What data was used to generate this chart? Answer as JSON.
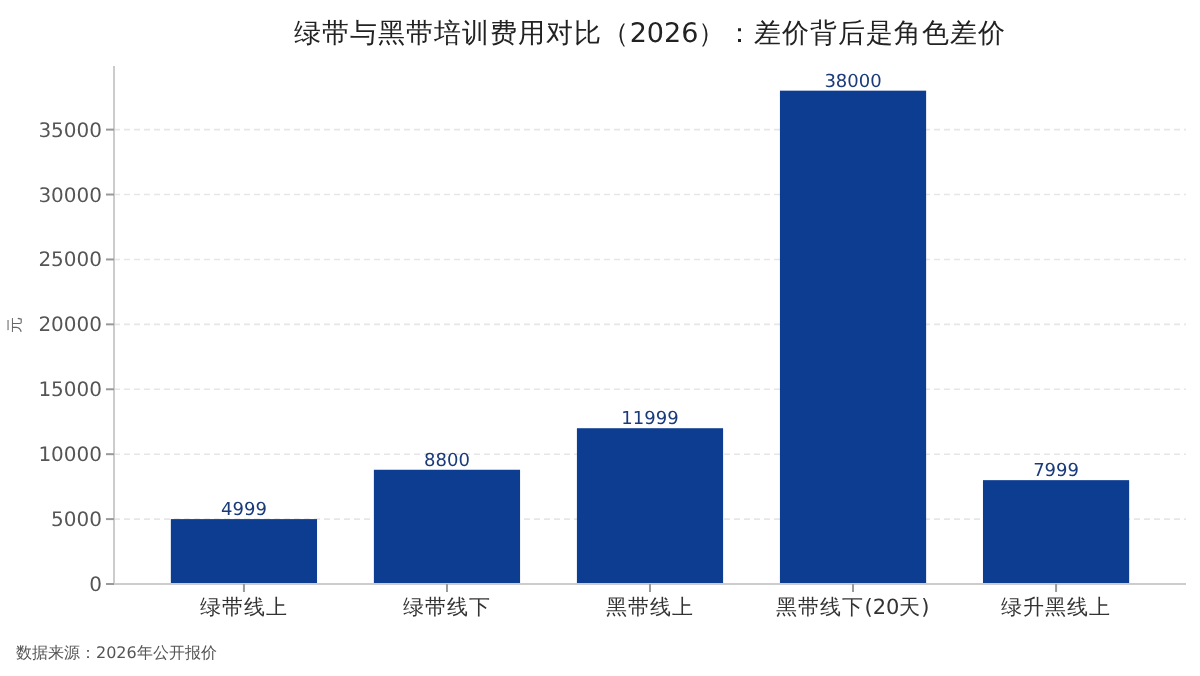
{
  "chart_data": {
    "type": "bar",
    "title": "绿带与黑带培训费用对比（2026）：差价背后是角色差价",
    "ylabel": "元",
    "categories": [
      "绿带线上",
      "绿带线下",
      "黑带线上",
      "黑带线下(20天)",
      "绿升黑线上"
    ],
    "values": [
      4999,
      8800,
      11999,
      38000,
      7999
    ],
    "color": "#0d3d91",
    "data_labels": true,
    "ylim": [
      0,
      39900
    ],
    "yticks": [
      0,
      5000,
      10000,
      15000,
      20000,
      25000,
      30000,
      35000
    ],
    "grid": "y",
    "annotations": [
      "数据来源：2026年公开报价"
    ]
  }
}
